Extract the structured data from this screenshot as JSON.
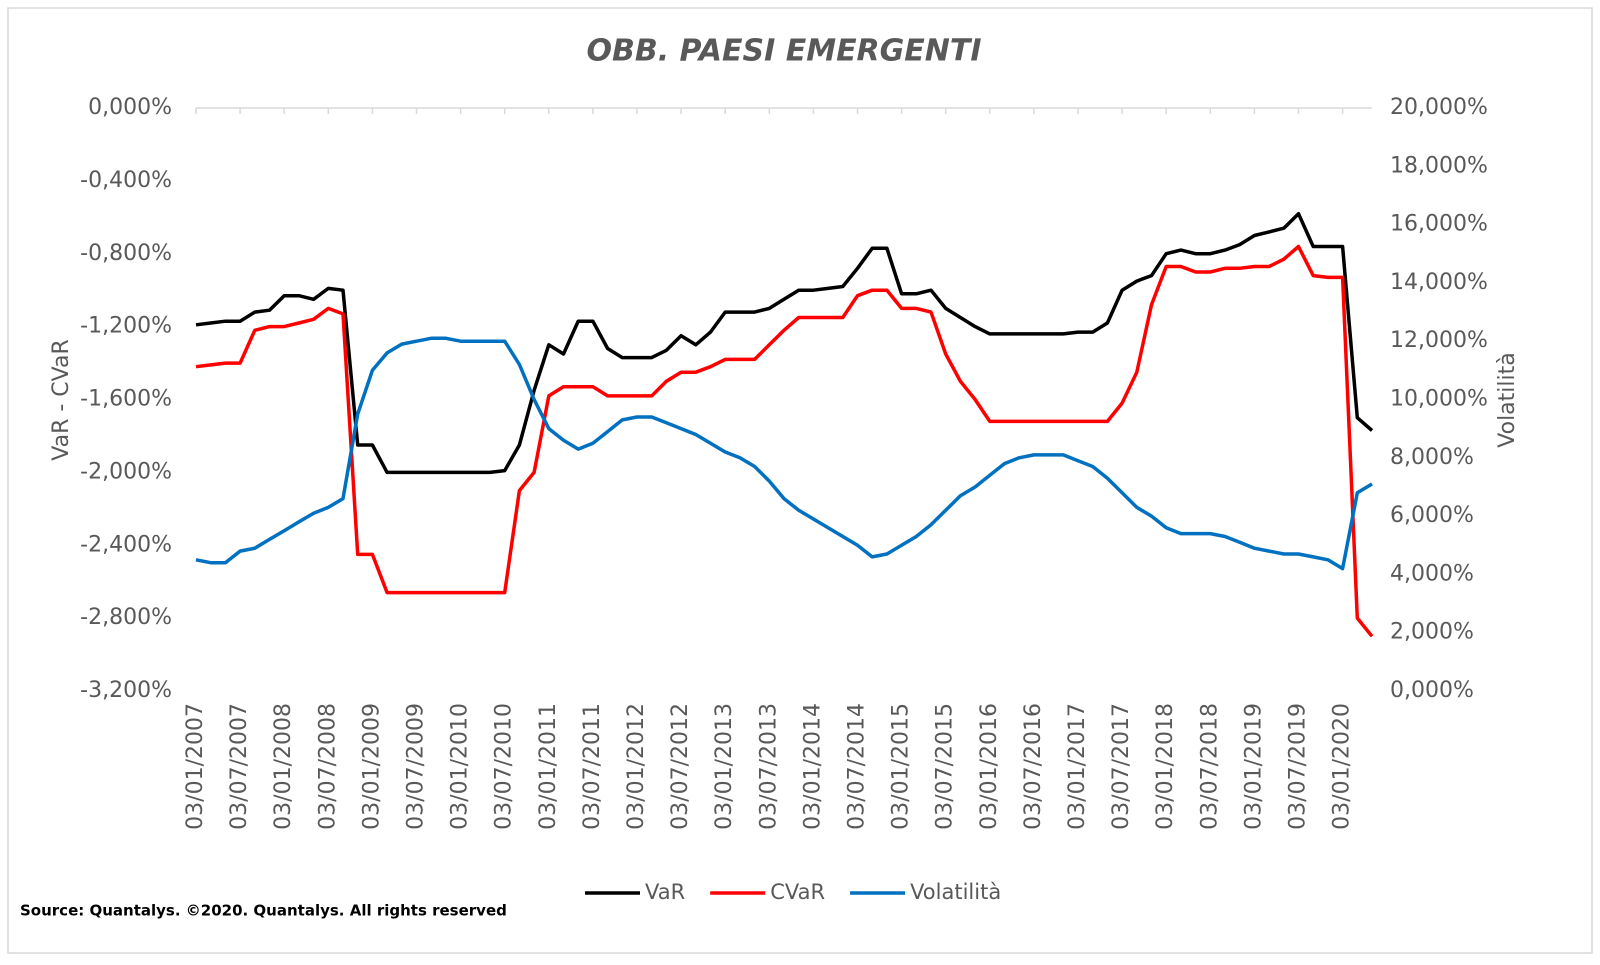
{
  "chart_data": {
    "type": "line",
    "title": "OBB. PAESI EMERGENTI",
    "ylabel": "VaR - CVaR",
    "y2label": "Volatilità",
    "source": "Source: Quantalys. ©2020. Quantalys. All rights reserved",
    "categories": [
      "03/01/2007",
      null,
      null,
      "03/07/2007",
      null,
      null,
      "03/01/2008",
      null,
      null,
      "03/07/2008",
      null,
      null,
      "03/01/2009",
      null,
      null,
      "03/07/2009",
      null,
      null,
      "03/01/2010",
      null,
      null,
      "03/07/2010",
      null,
      null,
      "03/01/2011",
      null,
      null,
      "03/07/2011",
      null,
      null,
      "03/01/2012",
      null,
      null,
      "03/07/2012",
      null,
      null,
      "03/01/2013",
      null,
      null,
      "03/07/2013",
      null,
      null,
      "03/01/2014",
      null,
      null,
      "03/07/2014",
      null,
      null,
      "03/01/2015",
      null,
      null,
      "03/07/2015",
      null,
      null,
      "03/01/2016",
      null,
      null,
      "03/07/2016",
      null,
      null,
      "03/01/2017",
      null,
      null,
      "03/07/2017",
      null,
      null,
      "03/01/2018",
      null,
      null,
      "03/07/2018",
      null,
      null,
      "03/01/2019",
      null,
      null,
      "03/07/2019",
      null,
      null,
      "03/01/2020",
      null,
      null
    ],
    "ylim": [
      -3.2,
      0
    ],
    "yticks": [
      {
        "value": 0,
        "label": "0,000%"
      },
      {
        "value": -0.4,
        "label": "-0,400%"
      },
      {
        "value": -0.8,
        "label": "-0,800%"
      },
      {
        "value": -1.2,
        "label": "-1,200%"
      },
      {
        "value": -1.6,
        "label": "-1,600%"
      },
      {
        "value": -2.0,
        "label": "-2,000%"
      },
      {
        "value": -2.4,
        "label": "-2,400%"
      },
      {
        "value": -2.8,
        "label": "-2,800%"
      },
      {
        "value": -3.2,
        "label": "-3,200%"
      }
    ],
    "y2lim": [
      0,
      20
    ],
    "y2ticks": [
      {
        "value": 0,
        "label": "0,000%"
      },
      {
        "value": 2,
        "label": "2,000%"
      },
      {
        "value": 4,
        "label": "4,000%"
      },
      {
        "value": 6,
        "label": "6,000%"
      },
      {
        "value": 8,
        "label": "8,000%"
      },
      {
        "value": 10,
        "label": "10,000%"
      },
      {
        "value": 12,
        "label": "12,000%"
      },
      {
        "value": 14,
        "label": "14,000%"
      },
      {
        "value": 16,
        "label": "16,000%"
      },
      {
        "value": 18,
        "label": "18,000%"
      },
      {
        "value": 20,
        "label": "20,000%"
      }
    ],
    "legend": "bottom",
    "series": [
      {
        "name": "VaR",
        "color": "#000000",
        "values": [
          -1.19,
          -1.18,
          -1.17,
          -1.17,
          -1.12,
          -1.11,
          -1.03,
          -1.03,
          -1.05,
          -0.99,
          -1.0,
          -1.85,
          -1.85,
          -2.0,
          -2.0,
          -2.0,
          -2.0,
          -2.0,
          -2.0,
          -2.0,
          -2.0,
          -1.99,
          -1.85,
          -1.55,
          -1.3,
          -1.35,
          -1.17,
          -1.17,
          -1.32,
          -1.37,
          -1.37,
          -1.37,
          -1.33,
          -1.25,
          -1.3,
          -1.23,
          -1.12,
          -1.12,
          -1.12,
          -1.1,
          -1.05,
          -1.0,
          -1.0,
          -0.99,
          -0.98,
          -0.88,
          -0.77,
          -0.77,
          -1.02,
          -1.02,
          -1.0,
          -1.1,
          -1.15,
          -1.2,
          -1.24,
          -1.24,
          -1.24,
          -1.24,
          -1.24,
          -1.24,
          -1.23,
          -1.23,
          -1.18,
          -1.0,
          -0.95,
          -0.92,
          -0.8,
          -0.78,
          -0.8,
          -0.8,
          -0.78,
          -0.75,
          -0.7,
          -0.68,
          -0.66,
          -0.58,
          -0.76,
          -0.76,
          -0.76,
          -1.7,
          -1.77
        ]
      },
      {
        "name": "CVaR",
        "color": "#ff0000",
        "values": [
          -1.42,
          -1.41,
          -1.4,
          -1.4,
          -1.22,
          -1.2,
          -1.2,
          -1.18,
          -1.16,
          -1.1,
          -1.13,
          -2.45,
          -2.45,
          -2.66,
          -2.66,
          -2.66,
          -2.66,
          -2.66,
          -2.66,
          -2.66,
          -2.66,
          -2.66,
          -2.1,
          -2.0,
          -1.58,
          -1.53,
          -1.53,
          -1.53,
          -1.58,
          -1.58,
          -1.58,
          -1.58,
          -1.5,
          -1.45,
          -1.45,
          -1.42,
          -1.38,
          -1.38,
          -1.38,
          -1.3,
          -1.22,
          -1.15,
          -1.15,
          -1.15,
          -1.15,
          -1.03,
          -1.0,
          -1.0,
          -1.1,
          -1.1,
          -1.12,
          -1.35,
          -1.5,
          -1.6,
          -1.72,
          -1.72,
          -1.72,
          -1.72,
          -1.72,
          -1.72,
          -1.72,
          -1.72,
          -1.72,
          -1.62,
          -1.45,
          -1.08,
          -0.87,
          -0.87,
          -0.9,
          -0.9,
          -0.88,
          -0.88,
          -0.87,
          -0.87,
          -0.83,
          -0.76,
          -0.92,
          -0.93,
          -0.93,
          -2.8,
          -2.9
        ]
      },
      {
        "name": "Volatilità",
        "color": "#0070c0",
        "axis": "y2",
        "values": [
          4.5,
          4.4,
          4.4,
          4.8,
          4.9,
          5.2,
          5.5,
          5.8,
          6.1,
          6.3,
          6.6,
          9.5,
          11.0,
          11.6,
          11.9,
          12.0,
          12.1,
          12.1,
          12.0,
          12.0,
          12.0,
          12.0,
          11.2,
          10.0,
          9.0,
          8.6,
          8.3,
          8.5,
          8.9,
          9.3,
          9.4,
          9.4,
          9.2,
          9.0,
          8.8,
          8.5,
          8.2,
          8.0,
          7.7,
          7.2,
          6.6,
          6.2,
          5.9,
          5.6,
          5.3,
          5.0,
          4.6,
          4.7,
          5.0,
          5.3,
          5.7,
          6.2,
          6.7,
          7.0,
          7.4,
          7.8,
          8.0,
          8.1,
          8.1,
          8.1,
          7.9,
          7.7,
          7.3,
          6.8,
          6.3,
          6.0,
          5.6,
          5.4,
          5.4,
          5.4,
          5.3,
          5.1,
          4.9,
          4.8,
          4.7,
          4.7,
          4.6,
          4.5,
          4.2,
          6.8,
          7.1
        ]
      }
    ]
  }
}
